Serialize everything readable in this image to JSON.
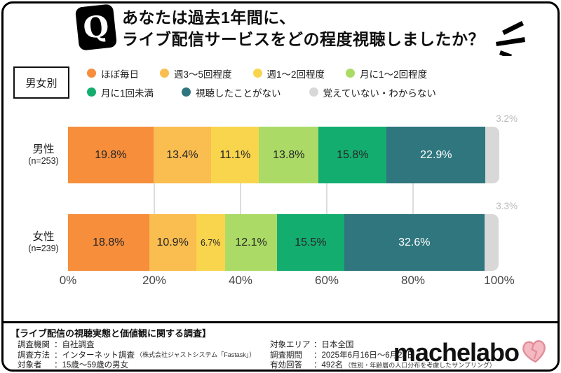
{
  "header": {
    "badge": "Q",
    "title_line1": "あなたは過去1年間に、",
    "title_line2": "ライブ配信サービスをどの程度視聴しましたか？"
  },
  "group_label": "男女別",
  "chart_data": {
    "type": "bar",
    "subtype": "horizontal-stacked",
    "categories": [
      "ほぼ毎日",
      "週3〜5回程度",
      "週1〜2回程度",
      "月に1〜2回程度",
      "月に1回未満",
      "視聴したことがない",
      "覚えていない・わからない"
    ],
    "colors": [
      "#F68E3C",
      "#FABD4F",
      "#F9D54E",
      "#ABDB66",
      "#14AD70",
      "#2F767E",
      "#D8D8D8"
    ],
    "label_text_colors": [
      "#262626",
      "#262626",
      "#262626",
      "#262626",
      "#262626",
      "#FFFFFF",
      "#B9B9B9"
    ],
    "series": [
      {
        "name": "男性",
        "n_label": "(n=253)",
        "values": [
          19.8,
          13.4,
          11.1,
          13.8,
          15.8,
          22.9,
          3.2
        ]
      },
      {
        "name": "女性",
        "n_label": "(n=239)",
        "values": [
          18.8,
          10.9,
          6.7,
          12.1,
          15.5,
          32.6,
          3.3
        ]
      }
    ],
    "value_suffix": "%",
    "x_ticks": [
      "0%",
      "20%",
      "40%",
      "60%",
      "80%",
      "100%"
    ],
    "xlim": [
      0,
      100
    ],
    "gridlines": [
      20,
      40,
      60,
      80
    ],
    "last_segment_label_outside": true,
    "legend_rows": [
      [
        0,
        1,
        2,
        3
      ],
      [
        4,
        5,
        6
      ]
    ]
  },
  "footer": {
    "survey_title": "【ライブ配信の視聴実態と価値観に関する調査】",
    "left_rows": [
      {
        "label": "調査機関",
        "colon": "：",
        "value": "自社調査",
        "note": ""
      },
      {
        "label": "調査方法",
        "colon": "：",
        "value": "インターネット調査",
        "note": "（株式会社ジャストシステム「Fastask」）"
      },
      {
        "label": "対象者",
        "colon": "：",
        "value": "15歳〜59歳の男女",
        "note": ""
      }
    ],
    "right_rows": [
      {
        "label": "対象エリア",
        "colon": "：",
        "value": "日本全国",
        "note": ""
      },
      {
        "label": "調査期間",
        "colon": "：",
        "value": "2025年6月16日〜6月23日",
        "note": ""
      },
      {
        "label": "有効回答",
        "colon": "：",
        "value": "492名",
        "note": "（性別・年齢層の人口分布を考慮したサンプリング）"
      }
    ],
    "logo_text": "machelabo",
    "logo_heart_fill": "#F5B9C1",
    "logo_heart_stroke": "#E08E9A"
  }
}
